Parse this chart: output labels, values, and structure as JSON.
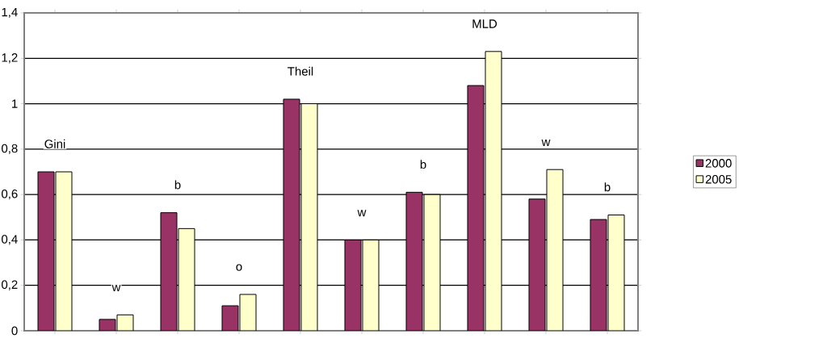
{
  "chart_data": {
    "type": "bar",
    "categories": [
      null,
      null,
      null,
      null,
      null,
      null,
      null,
      null,
      null,
      null
    ],
    "series": [
      {
        "name": "2000",
        "color": "#993366",
        "values": [
          0.7,
          0.05,
          0.52,
          0.11,
          1.02,
          0.4,
          0.61,
          1.08,
          0.58,
          0.49
        ]
      },
      {
        "name": "2005",
        "color": "#ffffcc",
        "values": [
          0.7,
          0.07,
          0.45,
          0.16,
          1.0,
          0.4,
          0.6,
          1.23,
          0.71,
          0.51
        ]
      }
    ],
    "ylim": [
      0,
      1.4
    ],
    "yticks": [
      0,
      {
        "value": 0.2,
        "label": "0,2"
      },
      {
        "value": 0.4,
        "label": "0,4"
      },
      {
        "value": 0.6,
        "label": "0,6"
      },
      {
        "value": 0.8,
        "label": "0,8"
      },
      1,
      {
        "value": 1.2,
        "label": "1,2"
      },
      {
        "value": 1.4,
        "label": "1,4"
      }
    ],
    "grid": "y",
    "legend": "right",
    "annotations": [
      "Gini",
      "w",
      "b",
      "o",
      "Theil",
      "w",
      "b",
      "MLD",
      "w",
      "b"
    ]
  }
}
